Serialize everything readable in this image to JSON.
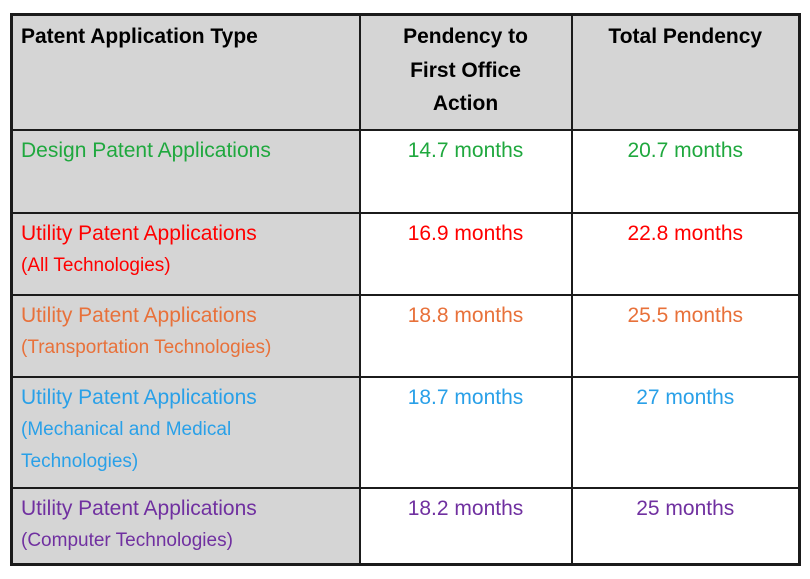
{
  "page": {
    "background_color": "#ffffff"
  },
  "table": {
    "style": {
      "header_bg": "#d5d5d5",
      "label_column_bg": "#d5d5d5",
      "value_column_bg": "#ffffff",
      "border_color": "#1b1b1b",
      "header_text_color": "#000000"
    },
    "headers": [
      "Patent Application Type",
      "Pendency to First Office Action",
      "Total Pendency"
    ],
    "rows": [
      {
        "type": "Design Patent Applications",
        "subtype": "",
        "color": "#1fa83e",
        "first_office_action": "14.7 months",
        "total_pendency": "20.7 months"
      },
      {
        "type": "Utility Patent Applications",
        "subtype": "(All Technologies)",
        "color": "#ff0000",
        "first_office_action": "16.9 months",
        "total_pendency": "22.8 months"
      },
      {
        "type": "Utility Patent Applications",
        "subtype": "(Transportation Technologies)",
        "color": "#e8713a",
        "first_office_action": "18.8 months",
        "total_pendency": "25.5 months"
      },
      {
        "type": "Utility Patent Applications",
        "subtype": "(Mechanical and Medical Technologies)",
        "color": "#29a0e8",
        "first_office_action": "18.7 months",
        "total_pendency": "27 months"
      },
      {
        "type": "Utility Patent Applications",
        "subtype": "(Computer Technologies)",
        "color": "#7030a0",
        "first_office_action": "18.2 months",
        "total_pendency": "25 months"
      }
    ]
  },
  "chart_data": {
    "type": "table",
    "title": "",
    "columns": [
      "Patent Application Type",
      "Pendency to First Office Action",
      "Total Pendency"
    ],
    "rows": [
      [
        "Design Patent Applications",
        "14.7 months",
        "20.7 months"
      ],
      [
        "Utility Patent Applications (All Technologies)",
        "16.9 months",
        "22.8 months"
      ],
      [
        "Utility Patent Applications (Transportation Technologies)",
        "18.8 months",
        "25.5 months"
      ],
      [
        "Utility Patent Applications (Mechanical and Medical Technologies)",
        "18.7 months",
        "27 months"
      ],
      [
        "Utility Patent Applications (Computer Technologies)",
        "18.2 months",
        "25 months"
      ]
    ],
    "values_numeric": {
      "pendency_to_first_office_action_months": [
        14.7,
        16.9,
        18.8,
        18.7,
        18.2
      ],
      "total_pendency_months": [
        20.7,
        22.8,
        25.5,
        27,
        25
      ]
    },
    "row_text_colors": [
      "#1fa83e",
      "#ff0000",
      "#e8713a",
      "#29a0e8",
      "#7030a0"
    ],
    "layout": {
      "header_background": "#d5d5d5",
      "label_column_background": "#d5d5d5",
      "value_columns_background": "#ffffff",
      "grid": "on"
    }
  }
}
